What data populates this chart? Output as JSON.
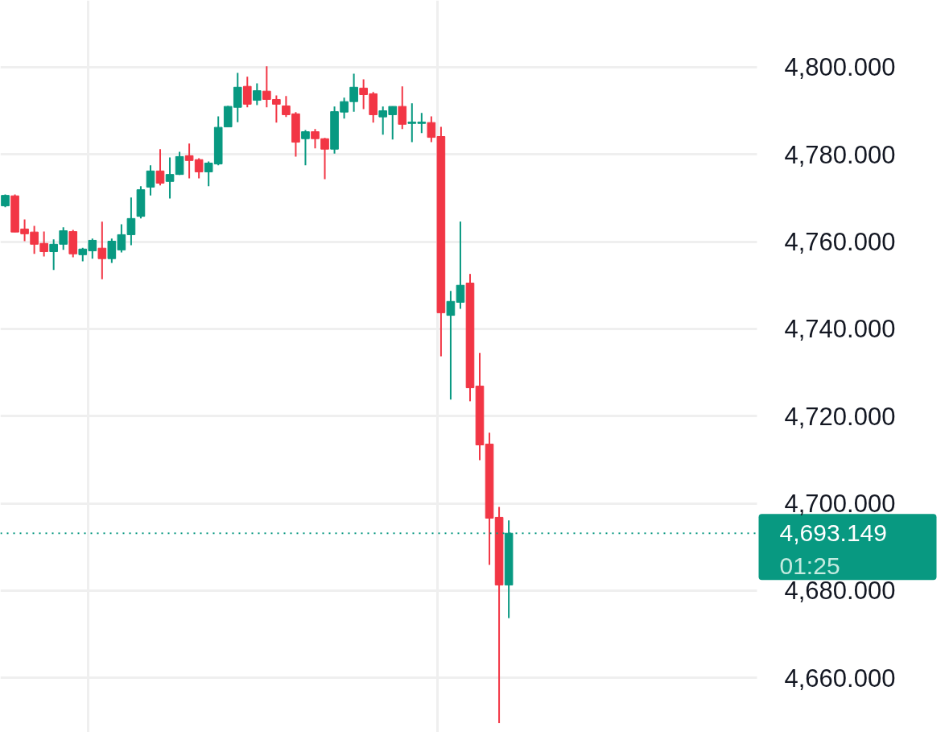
{
  "chart_data": {
    "type": "candlestick",
    "categories": [
      null,
      null,
      null,
      null,
      null,
      null,
      null,
      null,
      null,
      null,
      null,
      null,
      null,
      null,
      null,
      null,
      null,
      null,
      null,
      null,
      null,
      null,
      null,
      null,
      null,
      null,
      null,
      null,
      null,
      null,
      null,
      null,
      null,
      null,
      null,
      null,
      null,
      null,
      null,
      null,
      null,
      null,
      null,
      null,
      null,
      null,
      null,
      null,
      null,
      null,
      null,
      null,
      null,
      null,
      null,
      null,
      null,
      null,
      null,
      null,
      null,
      null,
      null,
      null,
      null,
      null,
      null,
      null,
      null,
      null,
      null,
      null,
      null,
      null,
      null,
      null,
      null,
      null,
      null,
      null,
      null,
      null,
      null,
      null,
      null,
      null,
      null,
      null,
      null,
      null,
      null,
      null,
      null,
      null,
      null,
      null,
      null,
      null
    ],
    "ohlc": [
      [
        4768.2,
        4770.8,
        4767.9,
        4770.6
      ],
      [
        4770.5,
        4770.8,
        4762.2,
        4762.2
      ],
      [
        4762.9,
        4765.1,
        4760.1,
        4761.8
      ],
      [
        4762.2,
        4763.6,
        4757.2,
        4759.4
      ],
      [
        4759.6,
        4762.3,
        4756.6,
        4757.7
      ],
      [
        4757.7,
        4760.5,
        4753.5,
        4759.4
      ],
      [
        4759.4,
        4763.3,
        4758.1,
        4762.5
      ],
      [
        4762.3,
        4762.7,
        4756.4,
        4757.2
      ],
      [
        4757.0,
        4758.6,
        4755.5,
        4758.3
      ],
      [
        4757.9,
        4760.7,
        4756.1,
        4760.3
      ],
      [
        4758.5,
        4764.6,
        4751.4,
        4756.1
      ],
      [
        4756.1,
        4760.7,
        4755.1,
        4760.1
      ],
      [
        4758.1,
        4764.0,
        4757.5,
        4761.6
      ],
      [
        4761.6,
        4770.1,
        4759.2,
        4765.3
      ],
      [
        4765.8,
        4772.7,
        4765.3,
        4771.9
      ],
      [
        4772.5,
        4777.5,
        4770.6,
        4776.2
      ],
      [
        4776.2,
        4781.2,
        4772.9,
        4773.4
      ],
      [
        4773.8,
        4779.3,
        4769.9,
        4775.4
      ],
      [
        4775.4,
        4780.6,
        4775.3,
        4779.5
      ],
      [
        4779.7,
        4782.5,
        4774.5,
        4778.6
      ],
      [
        4778.8,
        4779.1,
        4774.5,
        4776.0
      ],
      [
        4776.0,
        4778.4,
        4772.7,
        4778.0
      ],
      [
        4777.8,
        4788.7,
        4777.5,
        4786.2
      ],
      [
        4786.3,
        4791.1,
        4786.3,
        4791.0
      ],
      [
        4790.8,
        4798.7,
        4787.4,
        4795.4
      ],
      [
        4795.6,
        4797.8,
        4790.8,
        4791.5
      ],
      [
        4792.4,
        4796.3,
        4791.3,
        4794.6
      ],
      [
        4794.5,
        4800.2,
        4790.8,
        4792.6
      ],
      [
        4792.6,
        4793.5,
        4787.3,
        4791.5
      ],
      [
        4791.1,
        4793.4,
        4788.6,
        4789.1
      ],
      [
        4789.3,
        4789.7,
        4779.5,
        4782.8
      ],
      [
        4783.6,
        4785.6,
        4777.5,
        4785.2
      ],
      [
        4785.2,
        4785.8,
        4781.4,
        4783.6
      ],
      [
        4783.6,
        4783.8,
        4774.3,
        4781.2
      ],
      [
        4781.2,
        4791.0,
        4780.2,
        4789.8
      ],
      [
        4789.7,
        4793.0,
        4788.2,
        4792.1
      ],
      [
        4792.1,
        4798.5,
        4789.8,
        4795.4
      ],
      [
        4795.2,
        4797.2,
        4790.4,
        4793.7
      ],
      [
        4793.9,
        4794.3,
        4787.3,
        4789.1
      ],
      [
        4788.6,
        4791.0,
        4784.5,
        4790.0
      ],
      [
        4789.1,
        4791.0,
        4783.4,
        4791.0
      ],
      [
        4791.0,
        4795.6,
        4785.8,
        4786.9
      ],
      [
        4787.1,
        4791.7,
        4782.8,
        4787.4
      ],
      [
        4787.1,
        4789.5,
        4784.9,
        4787.4
      ],
      [
        4787.3,
        4788.7,
        4782.8,
        4783.9
      ],
      [
        4784.1,
        4786.3,
        4733.7,
        4743.7
      ],
      [
        4743.1,
        4748.7,
        4723.8,
        4746.3
      ],
      [
        4746.1,
        4764.6,
        4744.6,
        4750.0
      ],
      [
        4750.5,
        4752.6,
        4723.4,
        4726.5
      ],
      [
        4726.9,
        4734.5,
        4709.9,
        4713.4
      ],
      [
        4713.6,
        4716.2,
        4685.9,
        4696.6
      ],
      [
        4696.8,
        4699.2,
        4649.6,
        4681.3
      ],
      [
        4681.3,
        4696.1,
        4673.7,
        4693.149
      ],
      null,
      null,
      null,
      null,
      null,
      null,
      null,
      null,
      null,
      null,
      null,
      null,
      null,
      null,
      null,
      null,
      null,
      null,
      null,
      null,
      null,
      null,
      null,
      null,
      null,
      null,
      null,
      null,
      null,
      null,
      null,
      null,
      null,
      null,
      null,
      null,
      null,
      null,
      null,
      null,
      null,
      null,
      null,
      null,
      null
    ],
    "colors": [
      "#089981",
      "#f23645",
      "#f23645",
      "#f23645",
      "#f23645",
      "#089981",
      "#089981",
      "#f23645",
      "#089981",
      "#089981",
      "#f23645",
      "#089981",
      "#089981",
      "#089981",
      "#089981",
      "#089981",
      "#f23645",
      "#089981",
      "#089981",
      "#f23645",
      "#f23645",
      "#089981",
      "#089981",
      "#089981",
      "#089981",
      "#f23645",
      "#089981",
      "#f23645",
      "#f23645",
      "#f23645",
      "#f23645",
      "#089981",
      "#f23645",
      "#f23645",
      "#089981",
      "#089981",
      "#089981",
      "#f23645",
      "#f23645",
      "#089981",
      "#089981",
      "#f23645",
      "#089981",
      "#089981",
      "#f23645",
      "#f23645",
      "#089981",
      "#089981",
      "#f23645",
      "#f23645",
      "#f23645",
      "#f23645",
      "#089981",
      null,
      null,
      null,
      null,
      null,
      null,
      null,
      null,
      null,
      null,
      null,
      null,
      null,
      null,
      null,
      null,
      null,
      null,
      null,
      null,
      null,
      null,
      null,
      null,
      null,
      null,
      null,
      null,
      null,
      null,
      null,
      null,
      null,
      null,
      null,
      null,
      null,
      null,
      null,
      null,
      null,
      null,
      null,
      null,
      null
    ],
    "ylim": [
      4647.5,
      4815.3
    ],
    "yticks": [
      {
        "value": 4660,
        "label": "4,660.000"
      },
      {
        "value": 4680,
        "label": "4,680.000"
      },
      {
        "value": 4700,
        "label": "4,700.000"
      },
      {
        "value": 4720,
        "label": "4,720.000"
      },
      {
        "value": 4740,
        "label": "4,740.000"
      },
      {
        "value": 4760,
        "label": "4,760.000"
      },
      {
        "value": 4780,
        "label": "4,780.000"
      },
      {
        "value": 4800,
        "label": "4,800.000"
      }
    ],
    "grid": true,
    "tick_labels": "y",
    "ref_lines": [
      {
        "axis": "y",
        "value": 4693.149,
        "label": "4,693.149",
        "color": "#089981",
        "line_style": "dotted"
      }
    ],
    "annotations": [
      "01:25"
    ]
  }
}
